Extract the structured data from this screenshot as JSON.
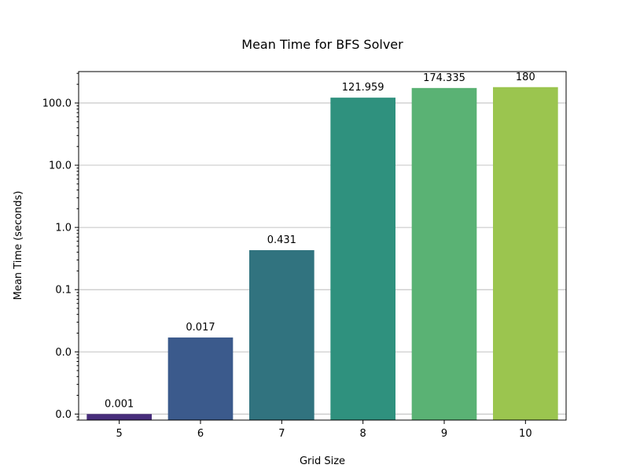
{
  "chart_data": {
    "type": "bar",
    "title": "Mean Time for BFS Solver",
    "xlabel": "Grid Size",
    "ylabel": "Mean Time (seconds)",
    "yscale": "log",
    "ylim": [
      0.0008,
      320
    ],
    "grid": "y",
    "categories": [
      "5",
      "6",
      "7",
      "8",
      "9",
      "10"
    ],
    "values": [
      0.001,
      0.017,
      0.431,
      121.959,
      174.335,
      180
    ],
    "data_labels": [
      "0.001",
      "0.017",
      "0.431",
      "121.959",
      "174.335",
      "180"
    ],
    "colors": [
      "#472d7b",
      "#3b5a8c",
      "#31737f",
      "#2f917e",
      "#5ab274",
      "#9bc54f"
    ],
    "yticks": [
      {
        "value": 0.001,
        "label": "0.0"
      },
      {
        "value": 0.01,
        "label": "0.0"
      },
      {
        "value": 0.1,
        "label": "0.1"
      },
      {
        "value": 1,
        "label": "1.0"
      },
      {
        "value": 10,
        "label": "10.0"
      },
      {
        "value": 100,
        "label": "100.0"
      }
    ]
  }
}
